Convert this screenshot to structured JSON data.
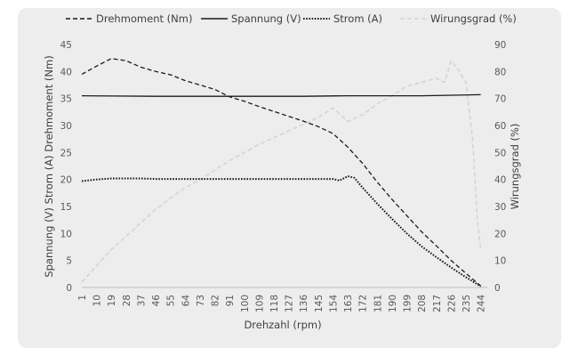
{
  "chart_data": {
    "type": "line",
    "x": [
      1,
      10,
      19,
      28,
      37,
      46,
      55,
      64,
      73,
      82,
      91,
      100,
      109,
      118,
      127,
      136,
      145,
      154,
      163,
      172,
      181,
      190,
      199,
      208,
      217,
      226,
      235,
      244
    ],
    "x_ticks": [
      "1",
      "10",
      "19",
      "28",
      "37",
      "46",
      "55",
      "64",
      "73",
      "82",
      "91",
      "100",
      "109",
      "118",
      "127",
      "136",
      "145",
      "154",
      "163",
      "172",
      "181",
      "190",
      "199",
      "208",
      "217",
      "226",
      "235",
      "244"
    ],
    "xlabel": "Drehzahl (rpm)",
    "ylabel": "Spannung (V) Strom (A) Drehmoment (Nm)",
    "y2label": "Wirungsgrad (%)",
    "ylim": [
      0,
      45
    ],
    "y2lim": [
      0,
      90
    ],
    "y_ticks": [
      "0",
      "5",
      "10",
      "15",
      "20",
      "25",
      "30",
      "35",
      "40",
      "45"
    ],
    "y2_ticks": [
      "0",
      "10",
      "20",
      "30",
      "40",
      "50",
      "60",
      "70",
      "80",
      "90"
    ],
    "legend_position": "top",
    "grid": false,
    "series": [
      {
        "name": "Drehmoment (Nm)",
        "axis": "left",
        "style": "dashed",
        "color": "#1a1a1a",
        "points": [
          [
            1,
            39.5
          ],
          [
            10,
            41
          ],
          [
            19,
            42.4
          ],
          [
            28,
            42
          ],
          [
            37,
            40.8
          ],
          [
            46,
            40
          ],
          [
            55,
            39.4
          ],
          [
            64,
            38.3
          ],
          [
            73,
            37.5
          ],
          [
            82,
            36.7
          ],
          [
            91,
            35.3
          ],
          [
            100,
            34.5
          ],
          [
            109,
            33.5
          ],
          [
            118,
            32.6
          ],
          [
            127,
            31.7
          ],
          [
            136,
            30.8
          ],
          [
            145,
            29.8
          ],
          [
            154,
            28.5
          ],
          [
            163,
            26
          ],
          [
            172,
            23
          ],
          [
            181,
            19.5
          ],
          [
            190,
            16.3
          ],
          [
            199,
            13.3
          ],
          [
            208,
            10.3
          ],
          [
            217,
            7.7
          ],
          [
            226,
            5
          ],
          [
            235,
            2.6
          ],
          [
            244,
            0.3
          ]
        ]
      },
      {
        "name": "Spannung (V)",
        "axis": "left",
        "style": "solid",
        "color": "#1a1a1a",
        "points": [
          [
            1,
            35.5
          ],
          [
            46,
            35.4
          ],
          [
            91,
            35.4
          ],
          [
            136,
            35.4
          ],
          [
            163,
            35.5
          ],
          [
            208,
            35.5
          ],
          [
            244,
            35.7
          ]
        ]
      },
      {
        "name": "Strom (A)",
        "axis": "left",
        "style": "dotted",
        "color": "#1a1a1a",
        "points": [
          [
            1,
            19.7
          ],
          [
            10,
            20
          ],
          [
            19,
            20.2
          ],
          [
            28,
            20.2
          ],
          [
            37,
            20.2
          ],
          [
            46,
            20.1
          ],
          [
            55,
            20.1
          ],
          [
            64,
            20.1
          ],
          [
            73,
            20.1
          ],
          [
            82,
            20.1
          ],
          [
            91,
            20.1
          ],
          [
            100,
            20.1
          ],
          [
            109,
            20.1
          ],
          [
            118,
            20.1
          ],
          [
            127,
            20.1
          ],
          [
            136,
            20.1
          ],
          [
            145,
            20.1
          ],
          [
            154,
            20.1
          ],
          [
            158,
            19.8
          ],
          [
            163,
            20.6
          ],
          [
            167,
            20.3
          ],
          [
            172,
            18.5
          ],
          [
            181,
            15.5
          ],
          [
            190,
            12.7
          ],
          [
            199,
            10
          ],
          [
            208,
            7.6
          ],
          [
            217,
            5.6
          ],
          [
            226,
            3.7
          ],
          [
            235,
            1.9
          ],
          [
            244,
            0.2
          ]
        ]
      },
      {
        "name": "Wirungsgrad (%)",
        "axis": "right",
        "style": "dashed",
        "color": "#d4d4d4",
        "points": [
          [
            1,
            2
          ],
          [
            10,
            8
          ],
          [
            19,
            14
          ],
          [
            28,
            19
          ],
          [
            37,
            24
          ],
          [
            46,
            29
          ],
          [
            55,
            33
          ],
          [
            64,
            37
          ],
          [
            73,
            40
          ],
          [
            82,
            43.5
          ],
          [
            91,
            47
          ],
          [
            100,
            50
          ],
          [
            109,
            53
          ],
          [
            118,
            55.5
          ],
          [
            127,
            58
          ],
          [
            136,
            60.5
          ],
          [
            145,
            63
          ],
          [
            154,
            66.5
          ],
          [
            163,
            61.5
          ],
          [
            172,
            64
          ],
          [
            181,
            68
          ],
          [
            190,
            71
          ],
          [
            199,
            74.5
          ],
          [
            208,
            76
          ],
          [
            217,
            77.5
          ],
          [
            222,
            76
          ],
          [
            226,
            84
          ],
          [
            231,
            80
          ],
          [
            235,
            76
          ],
          [
            239,
            55
          ],
          [
            242,
            25
          ],
          [
            244,
            14
          ]
        ]
      }
    ]
  }
}
